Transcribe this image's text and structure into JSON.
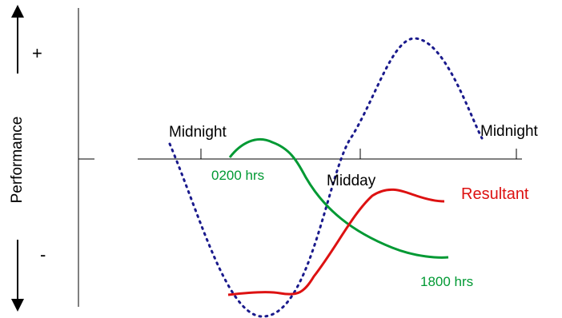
{
  "axis": {
    "ylabel": "Performance",
    "plus": "+",
    "minus": "-"
  },
  "labels": {
    "midnight_left": "Midnight",
    "midnight_right": "Midnight",
    "midday": "Midday",
    "t0200": "0200 hrs",
    "t1800": "1800 hrs",
    "resultant": "Resultant"
  },
  "colors": {
    "dotted_curve": "#1a1a8c",
    "green_curve": "#009933",
    "red_curve": "#dd1111",
    "green_text": "#009933",
    "red_text": "#dd1111",
    "axis": "#000000"
  }
}
